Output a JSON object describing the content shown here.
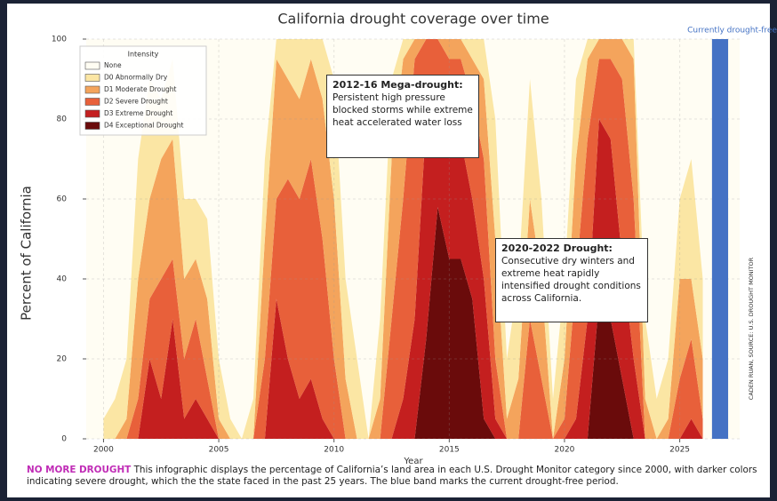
{
  "chart_data": {
    "type": "stacked_area",
    "title": "California drought coverage over time",
    "x_label": "Year",
    "y_label": "Percent of California",
    "xlim": [
      1999.25,
      2027.6
    ],
    "ylim": [
      0,
      100
    ],
    "xticks": [
      2000,
      2005,
      2010,
      2015,
      2020,
      2025
    ],
    "yticks": [
      0,
      20,
      40,
      60,
      80,
      100
    ],
    "grid": true,
    "legend_title": "Intensity",
    "legend_position": "upper left",
    "x": [
      2000,
      2000.5,
      2001,
      2001.5,
      2002,
      2002.5,
      2003,
      2003.5,
      2004,
      2004.5,
      2005,
      2005.5,
      2006,
      2006.5,
      2007,
      2007.5,
      2008,
      2008.5,
      2009,
      2009.5,
      2010,
      2010.5,
      2011,
      2011.5,
      2012,
      2012.5,
      2013,
      2013.5,
      2014,
      2014.5,
      2015,
      2015.5,
      2016,
      2016.5,
      2017,
      2017.5,
      2018,
      2018.5,
      2019,
      2019.5,
      2020,
      2020.5,
      2021,
      2021.5,
      2022,
      2022.5,
      2023,
      2023.5,
      2024,
      2024.5,
      2025,
      2025.5,
      2026
    ],
    "background_series": {
      "name": "None",
      "color": "#fffdf3"
    },
    "series": [
      {
        "name": "D0 Abnormally Dry",
        "color": "#fbe6a4",
        "values": [
          5,
          10,
          15,
          30,
          30,
          15,
          20,
          20,
          15,
          20,
          15,
          5,
          0,
          10,
          20,
          5,
          10,
          15,
          5,
          15,
          30,
          25,
          20,
          0,
          20,
          20,
          5,
          0,
          0,
          0,
          0,
          0,
          5,
          10,
          30,
          15,
          25,
          30,
          20,
          10,
          20,
          20,
          5,
          0,
          0,
          0,
          5,
          20,
          10,
          15,
          20,
          30,
          20
        ]
      },
      {
        "name": "D1 Moderate Drought",
        "color": "#f4a45c",
        "values": [
          0,
          0,
          5,
          30,
          25,
          30,
          30,
          20,
          15,
          20,
          5,
          0,
          0,
          0,
          30,
          35,
          25,
          25,
          25,
          35,
          40,
          15,
          0,
          0,
          10,
          40,
          35,
          5,
          0,
          0,
          5,
          5,
          10,
          20,
          30,
          5,
          15,
          30,
          25,
          0,
          15,
          30,
          20,
          5,
          5,
          10,
          35,
          10,
          0,
          5,
          25,
          15,
          15
        ]
      },
      {
        "name": "D2 Severe Drought",
        "color": "#e8603a",
        "values": [
          0,
          0,
          0,
          10,
          15,
          30,
          15,
          15,
          20,
          10,
          0,
          0,
          0,
          0,
          20,
          25,
          45,
          50,
          55,
          45,
          20,
          0,
          0,
          0,
          0,
          30,
          50,
          65,
          20,
          20,
          15,
          20,
          25,
          30,
          15,
          0,
          0,
          30,
          15,
          0,
          5,
          35,
          45,
          15,
          20,
          45,
          40,
          0,
          0,
          0,
          15,
          20,
          5
        ]
      },
      {
        "name": "D3 Extreme Drought",
        "color": "#c41f1f",
        "values": [
          0,
          0,
          0,
          0,
          20,
          10,
          30,
          5,
          10,
          5,
          0,
          0,
          0,
          0,
          0,
          35,
          20,
          10,
          15,
          5,
          0,
          0,
          0,
          0,
          0,
          0,
          10,
          30,
          55,
          22,
          35,
          30,
          25,
          35,
          5,
          0,
          0,
          0,
          0,
          0,
          0,
          5,
          30,
          45,
          45,
          30,
          20,
          0,
          0,
          0,
          0,
          5,
          0
        ]
      },
      {
        "name": "D4 Exceptional Drought",
        "color": "#6a0b0b",
        "values": [
          0,
          0,
          0,
          0,
          0,
          0,
          0,
          0,
          0,
          0,
          0,
          0,
          0,
          0,
          0,
          0,
          0,
          0,
          0,
          0,
          0,
          0,
          0,
          0,
          0,
          0,
          0,
          0,
          25,
          58,
          45,
          45,
          35,
          5,
          0,
          0,
          0,
          0,
          0,
          0,
          0,
          0,
          0,
          35,
          30,
          15,
          0,
          0,
          0,
          0,
          0,
          0,
          0
        ]
      }
    ],
    "highlight_band": {
      "label": "Currently drought-free",
      "start": 2026.4,
      "end": 2027.1,
      "color": "#4472c4"
    },
    "annotations": [
      {
        "title": "2012-16 Mega-drought:",
        "text": "Persistent high pressure blocked storms while extreme heat accelerated water loss"
      },
      {
        "title": "2020-2022 Drought:",
        "text": "Consecutive dry winters and extreme heat rapidly intensified drought conditions across California."
      }
    ],
    "credit": "CADEN RUAN, SOURCE: U.S. DROUGHT MONITOR",
    "caption_lead": "NO MORE DROUGHT",
    "caption": "This infographic displays the percentage of California’s land area in each U.S. Drought Monitor category since 2000, with darker colors indicating severe drought, which the the state faced in the past 25 years. The blue band marks the current drought-free period."
  }
}
